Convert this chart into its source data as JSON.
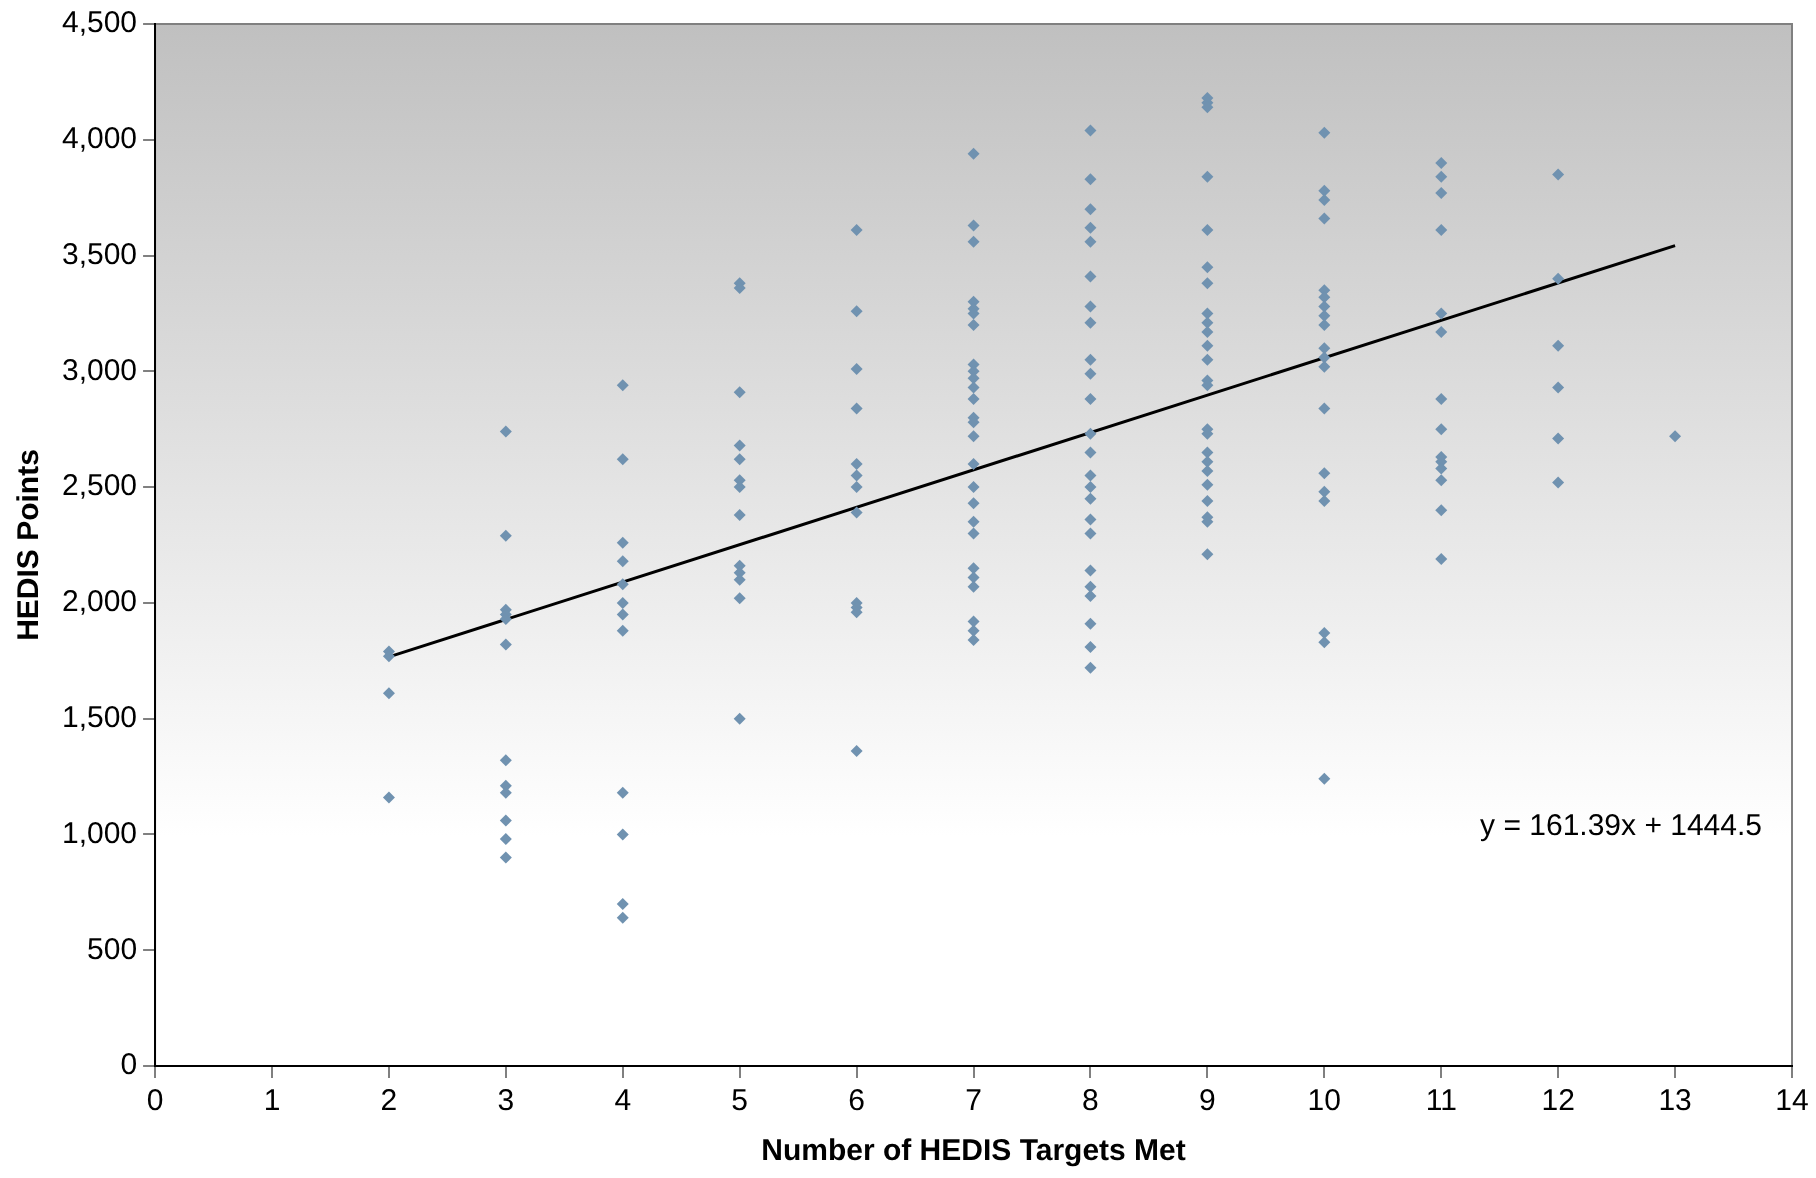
{
  "chart_data": {
    "type": "scatter",
    "xlabel": "Number of HEDIS Targets Met",
    "ylabel": "HEDIS Points",
    "xlim": [
      0,
      14
    ],
    "xticks": [
      0,
      1,
      2,
      3,
      4,
      5,
      6,
      7,
      8,
      9,
      10,
      11,
      12,
      13,
      14
    ],
    "ylim": [
      0,
      4500
    ],
    "yticks": [
      0,
      500,
      {
        "value": 1000,
        "label": "1,000"
      },
      {
        "value": 1500,
        "label": "1,500"
      },
      {
        "value": 2000,
        "label": "2,000"
      },
      {
        "value": 2500,
        "label": "2,500"
      },
      {
        "value": 3000,
        "label": "3,000"
      },
      {
        "value": 3500,
        "label": "3,500"
      },
      {
        "value": 4000,
        "label": "4,000"
      },
      {
        "value": 4500,
        "label": "4,500"
      }
    ],
    "grid": false,
    "legend": false,
    "marker": "diamond",
    "annotations": [
      "y = 161.39x + 1444.5"
    ],
    "series": [
      {
        "color": "#7092b0",
        "x": [
          2,
          2,
          2,
          2,
          3,
          3,
          3,
          3,
          3,
          3,
          3,
          3,
          3,
          3,
          3,
          3,
          4,
          4,
          4,
          4,
          4,
          4,
          4,
          4,
          4,
          4,
          4,
          4,
          5,
          5,
          5,
          5,
          5,
          5,
          5,
          5,
          5,
          5,
          5,
          5,
          5,
          6,
          6,
          6,
          6,
          6,
          6,
          6,
          6,
          6,
          6,
          6,
          6,
          7,
          7,
          7,
          7,
          7,
          7,
          7,
          7,
          7,
          7,
          7,
          7,
          7,
          7,
          7,
          7,
          7,
          7,
          7,
          7,
          7,
          7,
          7,
          7,
          7,
          7,
          8,
          8,
          8,
          8,
          8,
          8,
          8,
          8,
          8,
          8,
          8,
          8,
          8,
          8,
          8,
          8,
          8,
          8,
          8,
          8,
          8,
          8,
          8,
          8,
          9,
          9,
          9,
          9,
          9,
          9,
          9,
          9,
          9,
          9,
          9,
          9,
          9,
          9,
          9,
          9,
          9,
          9,
          9,
          9,
          9,
          9,
          9,
          9,
          10,
          10,
          10,
          10,
          10,
          10,
          10,
          10,
          10,
          10,
          10,
          10,
          10,
          10,
          10,
          10,
          10,
          10,
          10,
          11,
          11,
          11,
          11,
          11,
          11,
          11,
          11,
          11,
          11,
          11,
          11,
          11,
          11,
          12,
          12,
          12,
          12,
          12,
          12,
          13
        ],
        "values": [
          1790,
          1770,
          1610,
          1160,
          2740,
          2290,
          1970,
          1950,
          1930,
          1820,
          1320,
          1210,
          1180,
          1060,
          980,
          900,
          2940,
          2620,
          2260,
          2180,
          2080,
          2000,
          1950,
          1880,
          1180,
          1000,
          700,
          640,
          3380,
          3360,
          2910,
          2680,
          2620,
          2530,
          2500,
          2380,
          2160,
          2130,
          2100,
          2020,
          1500,
          3610,
          3260,
          3010,
          2840,
          2600,
          2550,
          2500,
          2390,
          2000,
          1980,
          1960,
          1360,
          3940,
          3630,
          3560,
          3300,
          3270,
          3250,
          3200,
          3030,
          3000,
          2970,
          2930,
          2880,
          2800,
          2780,
          2720,
          2600,
          2500,
          2430,
          2350,
          2300,
          2150,
          2110,
          2070,
          1920,
          1880,
          1840,
          4040,
          3830,
          3700,
          3620,
          3560,
          3410,
          3280,
          3210,
          3050,
          2990,
          2880,
          2730,
          2650,
          2550,
          2500,
          2450,
          2360,
          2300,
          2140,
          2070,
          2030,
          1910,
          1810,
          1720,
          4180,
          4160,
          4140,
          3840,
          3610,
          3450,
          3380,
          3250,
          3210,
          3170,
          3110,
          3050,
          2960,
          2940,
          2750,
          2730,
          2650,
          2610,
          2570,
          2510,
          2440,
          2370,
          2350,
          2210,
          4030,
          3780,
          3740,
          3660,
          3350,
          3320,
          3280,
          3240,
          3200,
          3100,
          3060,
          3020,
          2840,
          2560,
          2480,
          2440,
          1870,
          1830,
          1240,
          3900,
          3840,
          3770,
          3610,
          3250,
          3170,
          2880,
          2750,
          2630,
          2610,
          2580,
          2530,
          2400,
          2190,
          3850,
          3400,
          3110,
          2930,
          2710,
          2520,
          2720
        ]
      },
      {
        "type": "line",
        "color": "#000000",
        "marker": "none",
        "x": [
          2,
          13
        ],
        "values": [
          1767,
          3543
        ]
      }
    ]
  }
}
